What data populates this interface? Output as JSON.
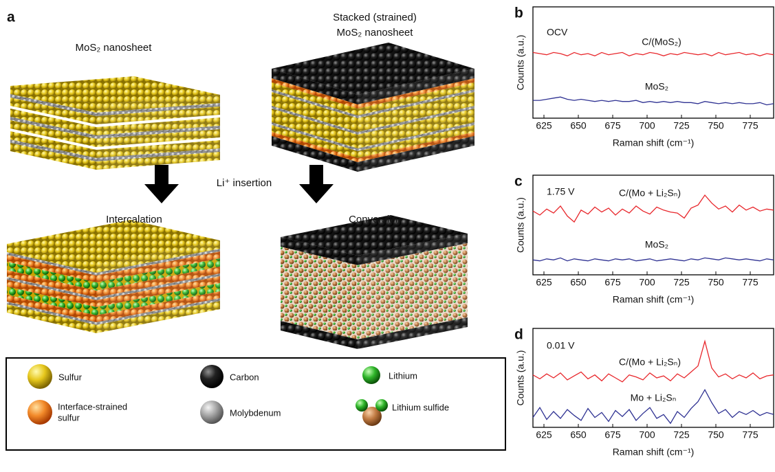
{
  "panel_a": {
    "label": "a",
    "title_left": "MoS₂ nanosheet",
    "title_right": [
      "Stacked (strained)",
      "MoS₂ nanosheet"
    ],
    "arrow_label": "Li⁺ insertion",
    "result_left": "Intercalation",
    "result_right": "Conversion",
    "legend": [
      [
        "Sulfur"
      ],
      [
        "Interface-strained",
        "sulfur"
      ],
      [
        "Carbon"
      ],
      [
        "Molybdenum"
      ],
      [
        "Lithium"
      ],
      [
        "Lithium sulfide"
      ]
    ]
  },
  "chart_data": [
    {
      "type": "line",
      "panel": "b",
      "annotation": "OCV",
      "xlabel": "Raman shift (cm⁻¹)",
      "ylabel": "Counts (a.u.)",
      "x": [
        617,
        622,
        627,
        632,
        637,
        642,
        647,
        652,
        657,
        662,
        667,
        672,
        677,
        682,
        687,
        692,
        697,
        702,
        707,
        712,
        717,
        722,
        727,
        732,
        737,
        742,
        747,
        752,
        757,
        762,
        767,
        772,
        777,
        782,
        787,
        792
      ],
      "xlim": [
        617,
        792
      ],
      "xticks": [
        625,
        650,
        675,
        700,
        725,
        750,
        775
      ],
      "ylim": [
        0,
        10
      ],
      "series": [
        {
          "name": "C/(MoS₂)",
          "color": "#e8262b",
          "values": [
            5.9,
            5.8,
            5.7,
            5.9,
            5.8,
            5.6,
            5.9,
            5.7,
            5.8,
            5.6,
            5.9,
            5.7,
            5.8,
            5.9,
            5.6,
            5.8,
            5.7,
            5.9,
            5.8,
            5.6,
            5.8,
            5.7,
            5.9,
            5.8,
            5.7,
            5.8,
            5.6,
            5.9,
            5.7,
            5.8,
            5.9,
            5.7,
            5.8,
            5.6,
            5.8,
            5.7
          ]
        },
        {
          "name": "MoS₂",
          "color": "#2e3192",
          "values": [
            1.6,
            1.6,
            1.7,
            1.8,
            1.9,
            1.7,
            1.6,
            1.7,
            1.6,
            1.5,
            1.6,
            1.5,
            1.6,
            1.5,
            1.5,
            1.6,
            1.4,
            1.5,
            1.4,
            1.5,
            1.4,
            1.5,
            1.4,
            1.4,
            1.3,
            1.5,
            1.4,
            1.3,
            1.4,
            1.3,
            1.4,
            1.3,
            1.3,
            1.4,
            1.2,
            1.3
          ]
        }
      ]
    },
    {
      "type": "line",
      "panel": "c",
      "annotation": "1.75 V",
      "xlabel": "Raman shift (cm⁻¹)",
      "ylabel": "Counts (a.u.)",
      "x": [
        617,
        622,
        627,
        632,
        637,
        642,
        647,
        652,
        657,
        662,
        667,
        672,
        677,
        682,
        687,
        692,
        697,
        702,
        707,
        712,
        717,
        722,
        727,
        732,
        737,
        742,
        747,
        752,
        757,
        762,
        767,
        772,
        777,
        782,
        787,
        792
      ],
      "xlim": [
        617,
        792
      ],
      "xticks": [
        625,
        650,
        675,
        700,
        725,
        750,
        775
      ],
      "ylim": [
        0,
        10
      ],
      "series": [
        {
          "name": "C/(Mo + Li₂Sₙ)",
          "color": "#e8262b",
          "values": [
            6.4,
            6.0,
            6.6,
            6.2,
            6.9,
            5.9,
            5.3,
            6.5,
            6.1,
            6.8,
            6.3,
            6.7,
            6.0,
            6.6,
            6.2,
            6.9,
            6.4,
            6.1,
            6.8,
            6.5,
            6.3,
            6.2,
            5.7,
            6.7,
            7.0,
            8.0,
            7.2,
            6.6,
            6.9,
            6.3,
            7.0,
            6.5,
            6.8,
            6.4,
            6.6,
            6.5
          ]
        },
        {
          "name": "MoS₂",
          "color": "#2e3192",
          "values": [
            1.5,
            1.4,
            1.6,
            1.5,
            1.7,
            1.4,
            1.6,
            1.5,
            1.4,
            1.6,
            1.5,
            1.4,
            1.6,
            1.5,
            1.6,
            1.4,
            1.5,
            1.6,
            1.4,
            1.5,
            1.6,
            1.5,
            1.4,
            1.6,
            1.5,
            1.7,
            1.6,
            1.5,
            1.7,
            1.6,
            1.5,
            1.6,
            1.5,
            1.4,
            1.6,
            1.5
          ]
        }
      ]
    },
    {
      "type": "line",
      "panel": "d",
      "annotation": "0.01 V",
      "xlabel": "Raman shift (cm⁻¹)",
      "ylabel": "Counts (a.u.)",
      "x": [
        617,
        622,
        627,
        632,
        637,
        642,
        647,
        652,
        657,
        662,
        667,
        672,
        677,
        682,
        687,
        692,
        697,
        702,
        707,
        712,
        717,
        722,
        727,
        732,
        737,
        742,
        747,
        752,
        757,
        762,
        767,
        772,
        777,
        782,
        787,
        792
      ],
      "xlim": [
        617,
        792
      ],
      "xticks": [
        625,
        650,
        675,
        700,
        725,
        750,
        775
      ],
      "ylim": [
        0,
        10
      ],
      "series": [
        {
          "name": "C/(Mo + Li₂Sₙ)",
          "color": "#e8262b",
          "values": [
            5.3,
            4.9,
            5.4,
            5.0,
            5.5,
            4.8,
            5.2,
            5.6,
            4.9,
            5.3,
            4.7,
            5.4,
            5.0,
            4.6,
            5.3,
            5.1,
            4.8,
            5.5,
            5.0,
            5.2,
            4.7,
            5.4,
            5.0,
            5.6,
            6.2,
            8.7,
            6.0,
            5.1,
            5.4,
            4.9,
            5.3,
            5.0,
            5.5,
            4.9,
            5.2,
            5.3
          ]
        },
        {
          "name": "Mo + Li₂Sₙ",
          "color": "#2e3192",
          "values": [
            1.0,
            2.0,
            0.8,
            1.6,
            0.9,
            1.8,
            1.2,
            0.7,
            1.9,
            1.0,
            1.5,
            0.6,
            1.7,
            1.1,
            1.8,
            0.7,
            1.4,
            2.0,
            0.9,
            1.3,
            0.4,
            1.6,
            1.0,
            1.9,
            2.6,
            3.8,
            2.5,
            1.4,
            1.8,
            1.0,
            1.6,
            1.3,
            1.7,
            1.2,
            1.5,
            1.3
          ]
        }
      ]
    }
  ]
}
